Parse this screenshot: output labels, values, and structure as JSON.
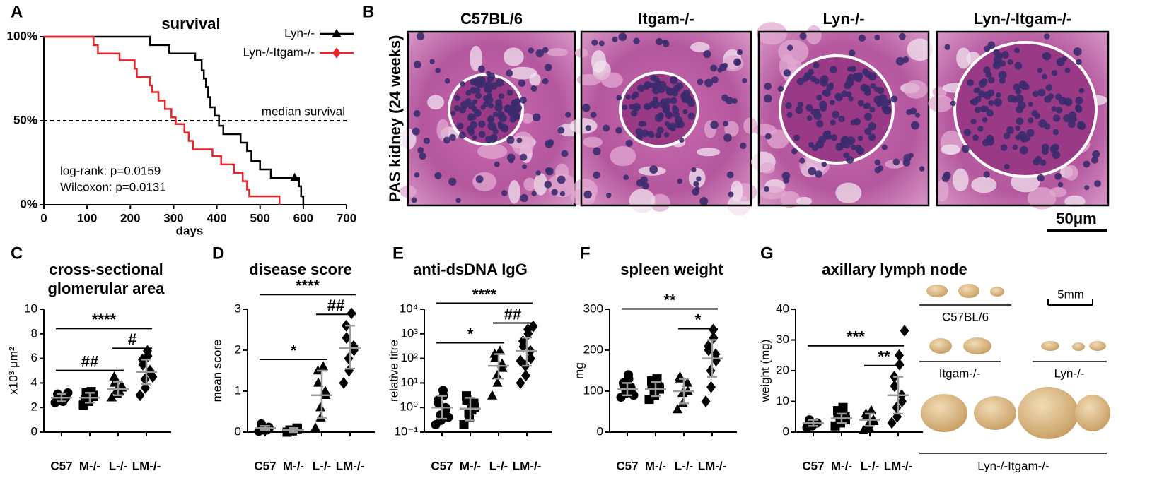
{
  "chart_data": [
    {
      "type": "survival",
      "panel": "A",
      "title": "survival",
      "x_label": "days",
      "xlim": [
        0,
        700
      ],
      "xticks": [
        0,
        100,
        200,
        300,
        400,
        500,
        600,
        700
      ],
      "ylim": [
        0,
        100
      ],
      "yticks": [
        {
          "value": 0,
          "label": "0%"
        },
        {
          "value": 50,
          "label": "50%"
        },
        {
          "value": 100,
          "label": "100%"
        }
      ],
      "median": {
        "value": 50,
        "label": "median survival"
      },
      "notes": [
        "log-rank: p=0.0159",
        "Wilcoxon: p=0.0131"
      ],
      "series": [
        {
          "name": "Lyn-/-",
          "color": "#000000",
          "marker": "triangle",
          "x": [
            0,
            245,
            245,
            290,
            290,
            350,
            350,
            365,
            365,
            370,
            370,
            375,
            375,
            380,
            380,
            385,
            385,
            395,
            395,
            405,
            405,
            415,
            415,
            455,
            455,
            470,
            470,
            480,
            480,
            500,
            500,
            525,
            525,
            590,
            590,
            595,
            595,
            600,
            600
          ],
          "values": [
            100,
            100,
            95,
            95,
            90,
            90,
            86,
            86,
            80,
            80,
            75,
            75,
            70,
            70,
            64,
            64,
            58,
            58,
            53,
            53,
            47,
            47,
            42,
            42,
            37,
            37,
            32,
            32,
            26,
            26,
            21,
            21,
            16,
            16,
            11,
            11,
            5,
            5,
            0
          ],
          "censored": {
            "x": [
              580
            ],
            "values": [
              16
            ]
          }
        },
        {
          "name": "Lyn-/-Itgam-/-",
          "color": "#e8262a",
          "marker": "diamond",
          "x": [
            0,
            115,
            115,
            125,
            125,
            175,
            175,
            210,
            210,
            215,
            215,
            245,
            245,
            250,
            250,
            265,
            265,
            280,
            280,
            295,
            295,
            305,
            305,
            325,
            325,
            335,
            335,
            345,
            345,
            390,
            390,
            410,
            410,
            440,
            440,
            460,
            460,
            470,
            470,
            475,
            475,
            545,
            545
          ],
          "values": [
            100,
            100,
            95,
            95,
            90,
            90,
            86,
            86,
            81,
            81,
            76,
            76,
            71,
            71,
            67,
            67,
            62,
            62,
            57,
            57,
            52,
            52,
            48,
            48,
            43,
            43,
            38,
            38,
            33,
            33,
            29,
            29,
            24,
            24,
            19,
            19,
            14,
            14,
            9,
            9,
            5,
            5,
            0
          ]
        }
      ]
    },
    {
      "type": "images",
      "panel": "B",
      "y_label": "PAS kidney (24 weeks)",
      "titles": [
        "C57BL/6",
        "Itgam-/-",
        "Lyn-/-",
        "Lyn-/-Itgam-/-"
      ],
      "scale_bar": "50μm"
    },
    {
      "type": "dot",
      "panel": "C",
      "title": [
        "cross-sectional",
        "glomerular area"
      ],
      "y_label": "x10³ μm²",
      "categories": [
        "C57",
        "M-/-",
        "L-/-",
        "LM-/-"
      ],
      "markers": [
        "circle",
        "square",
        "triangle",
        "diamond"
      ],
      "ylim": [
        0,
        10
      ],
      "yticks": [
        0,
        2,
        4,
        6,
        8,
        10
      ],
      "values": [
        [
          2.4,
          2.6,
          2.7,
          2.8,
          2.9,
          3.0,
          3.1,
          2.5,
          2.8,
          3.2
        ],
        [
          2.2,
          2.5,
          2.7,
          2.9,
          3.0,
          3.2,
          2.6,
          3.3
        ],
        [
          2.8,
          3.1,
          3.4,
          3.6,
          3.8,
          4.0,
          4.5,
          3.3
        ],
        [
          3.0,
          3.6,
          4.3,
          4.8,
          5.0,
          5.5,
          5.9,
          6.2,
          6.6,
          4.5
        ]
      ],
      "mean": [
        2.8,
        2.8,
        3.5,
        4.9
      ],
      "lower": [
        2.5,
        2.4,
        3.0,
        3.9
      ],
      "upper": [
        3.1,
        3.2,
        4.1,
        5.9
      ],
      "comparisons": [
        {
          "from": 0,
          "to": 2,
          "label": "##"
        },
        {
          "from": 2,
          "to": 3,
          "label": "#"
        },
        {
          "from": 0,
          "to": 3,
          "label": "****"
        }
      ]
    },
    {
      "type": "dot",
      "panel": "D",
      "title": [
        "disease score"
      ],
      "y_label": "mean score",
      "categories": [
        "C57",
        "M-/-",
        "L-/-",
        "LM-/-"
      ],
      "markers": [
        "circle",
        "square",
        "triangle",
        "diamond"
      ],
      "ylim": [
        0,
        3
      ],
      "yticks": [
        0,
        1,
        2,
        3
      ],
      "values": [
        [
          0.02,
          0.05,
          0.08,
          0.1,
          0.12,
          0.15,
          0.2,
          0.05
        ],
        [
          0,
          0.03,
          0.05,
          0.08,
          0.1,
          0.05
        ],
        [
          0.1,
          0.35,
          0.6,
          0.9,
          1.0,
          1.2,
          1.5,
          1.6
        ],
        [
          1.2,
          1.5,
          1.8,
          2.0,
          2.1,
          2.3,
          2.6,
          2.9
        ]
      ],
      "mean": [
        0.1,
        0.05,
        0.9,
        2.05
      ],
      "lower": [
        0.05,
        0,
        0.35,
        1.55
      ],
      "upper": [
        0.15,
        0.1,
        1.5,
        2.6
      ],
      "comparisons": [
        {
          "from": 0,
          "to": 2,
          "label": "*"
        },
        {
          "from": 2,
          "to": 3,
          "label": "##"
        },
        {
          "from": 0,
          "to": 3,
          "label": "****"
        }
      ]
    },
    {
      "type": "dot",
      "panel": "E",
      "title": [
        "anti-dsDNA IgG"
      ],
      "y_label": "relative titre",
      "log_scale": true,
      "categories": [
        "C57",
        "M-/-",
        "L-/-",
        "LM-/-"
      ],
      "markers": [
        "circle",
        "square",
        "triangle",
        "diamond"
      ],
      "ylim": [
        0.1,
        10000
      ],
      "yticks": [
        {
          "value": 0.1,
          "label": "10⁻¹"
        },
        {
          "value": 1,
          "label": "10⁰"
        },
        {
          "value": 10,
          "label": "10¹"
        },
        {
          "value": 100,
          "label": "10²"
        },
        {
          "value": 1000,
          "label": "10³"
        },
        {
          "value": 10000,
          "label": "10⁴"
        }
      ],
      "values": [
        [
          0.2,
          0.3,
          0.5,
          0.8,
          1,
          1.5,
          2,
          3,
          5,
          0.4
        ],
        [
          0.2,
          0.4,
          0.6,
          1,
          1.5,
          2,
          3,
          0.8
        ],
        [
          3,
          10,
          20,
          40,
          60,
          100,
          150,
          200
        ],
        [
          10,
          20,
          50,
          100,
          200,
          300,
          500,
          1000,
          1500,
          2000,
          80
        ]
      ],
      "mean": [
        1,
        0.9,
        50,
        200
      ],
      "lower": [
        0.35,
        0.3,
        15,
        50
      ],
      "upper": [
        3,
        2.5,
        150,
        700
      ],
      "comparisons": [
        {
          "from": 0,
          "to": 2,
          "label": "*"
        },
        {
          "from": 2,
          "to": 3,
          "label": "##"
        },
        {
          "from": 0,
          "to": 3,
          "label": "****"
        }
      ]
    },
    {
      "type": "dot",
      "panel": "F",
      "title": [
        "spleen weight"
      ],
      "y_label": "mg",
      "categories": [
        "C57",
        "M-/-",
        "L-/-",
        "LM-/-"
      ],
      "markers": [
        "circle",
        "square",
        "triangle",
        "diamond"
      ],
      "ylim": [
        0,
        300
      ],
      "yticks": [
        0,
        100,
        200,
        300
      ],
      "values": [
        [
          85,
          95,
          100,
          105,
          110,
          115,
          120,
          130,
          140,
          90
        ],
        [
          80,
          90,
          100,
          105,
          110,
          115,
          125,
          130
        ],
        [
          55,
          70,
          95,
          100,
          120,
          130,
          135
        ],
        [
          75,
          110,
          150,
          175,
          190,
          200,
          210,
          230,
          250
        ]
      ],
      "mean": [
        105,
        105,
        100,
        180
      ],
      "lower": [
        90,
        88,
        70,
        135
      ],
      "upper": [
        120,
        122,
        130,
        225
      ],
      "comparisons": [
        {
          "from": 2,
          "to": 3,
          "label": "*"
        },
        {
          "from": 0,
          "to": 3,
          "label": "**"
        }
      ]
    },
    {
      "type": "dot",
      "panel": "G",
      "title": [
        "axillary lymph node"
      ],
      "y_label": "weight (mg)",
      "categories": [
        "C57",
        "M-/-",
        "L-/-",
        "LM-/-"
      ],
      "markers": [
        "circle",
        "square",
        "triangle",
        "diamond"
      ],
      "ylim": [
        0,
        40
      ],
      "yticks": [
        0,
        10,
        20,
        30,
        40
      ],
      "values": [
        [
          1.5,
          2,
          2.5,
          3,
          3,
          3.5,
          4,
          2.8
        ],
        [
          2,
          3,
          3.5,
          4,
          5,
          6,
          7,
          8
        ],
        [
          0.5,
          1.5,
          2.5,
          3.5,
          4,
          5,
          6,
          7
        ],
        [
          3,
          5,
          8,
          10,
          12,
          15,
          18,
          22,
          25,
          33
        ]
      ],
      "mean": [
        3,
        4.5,
        4,
        12
      ],
      "lower": [
        2,
        3,
        2,
        6
      ],
      "upper": [
        4,
        6,
        6,
        18
      ],
      "comparisons": [
        {
          "from": 2,
          "to": 3,
          "label": "**"
        },
        {
          "from": 0,
          "to": 3,
          "label": "***"
        }
      ],
      "photo_labels": [
        "C57BL/6",
        "5mm",
        "Itgam-/-",
        "Lyn-/-",
        "Lyn-/-Itgam-/-"
      ]
    }
  ]
}
